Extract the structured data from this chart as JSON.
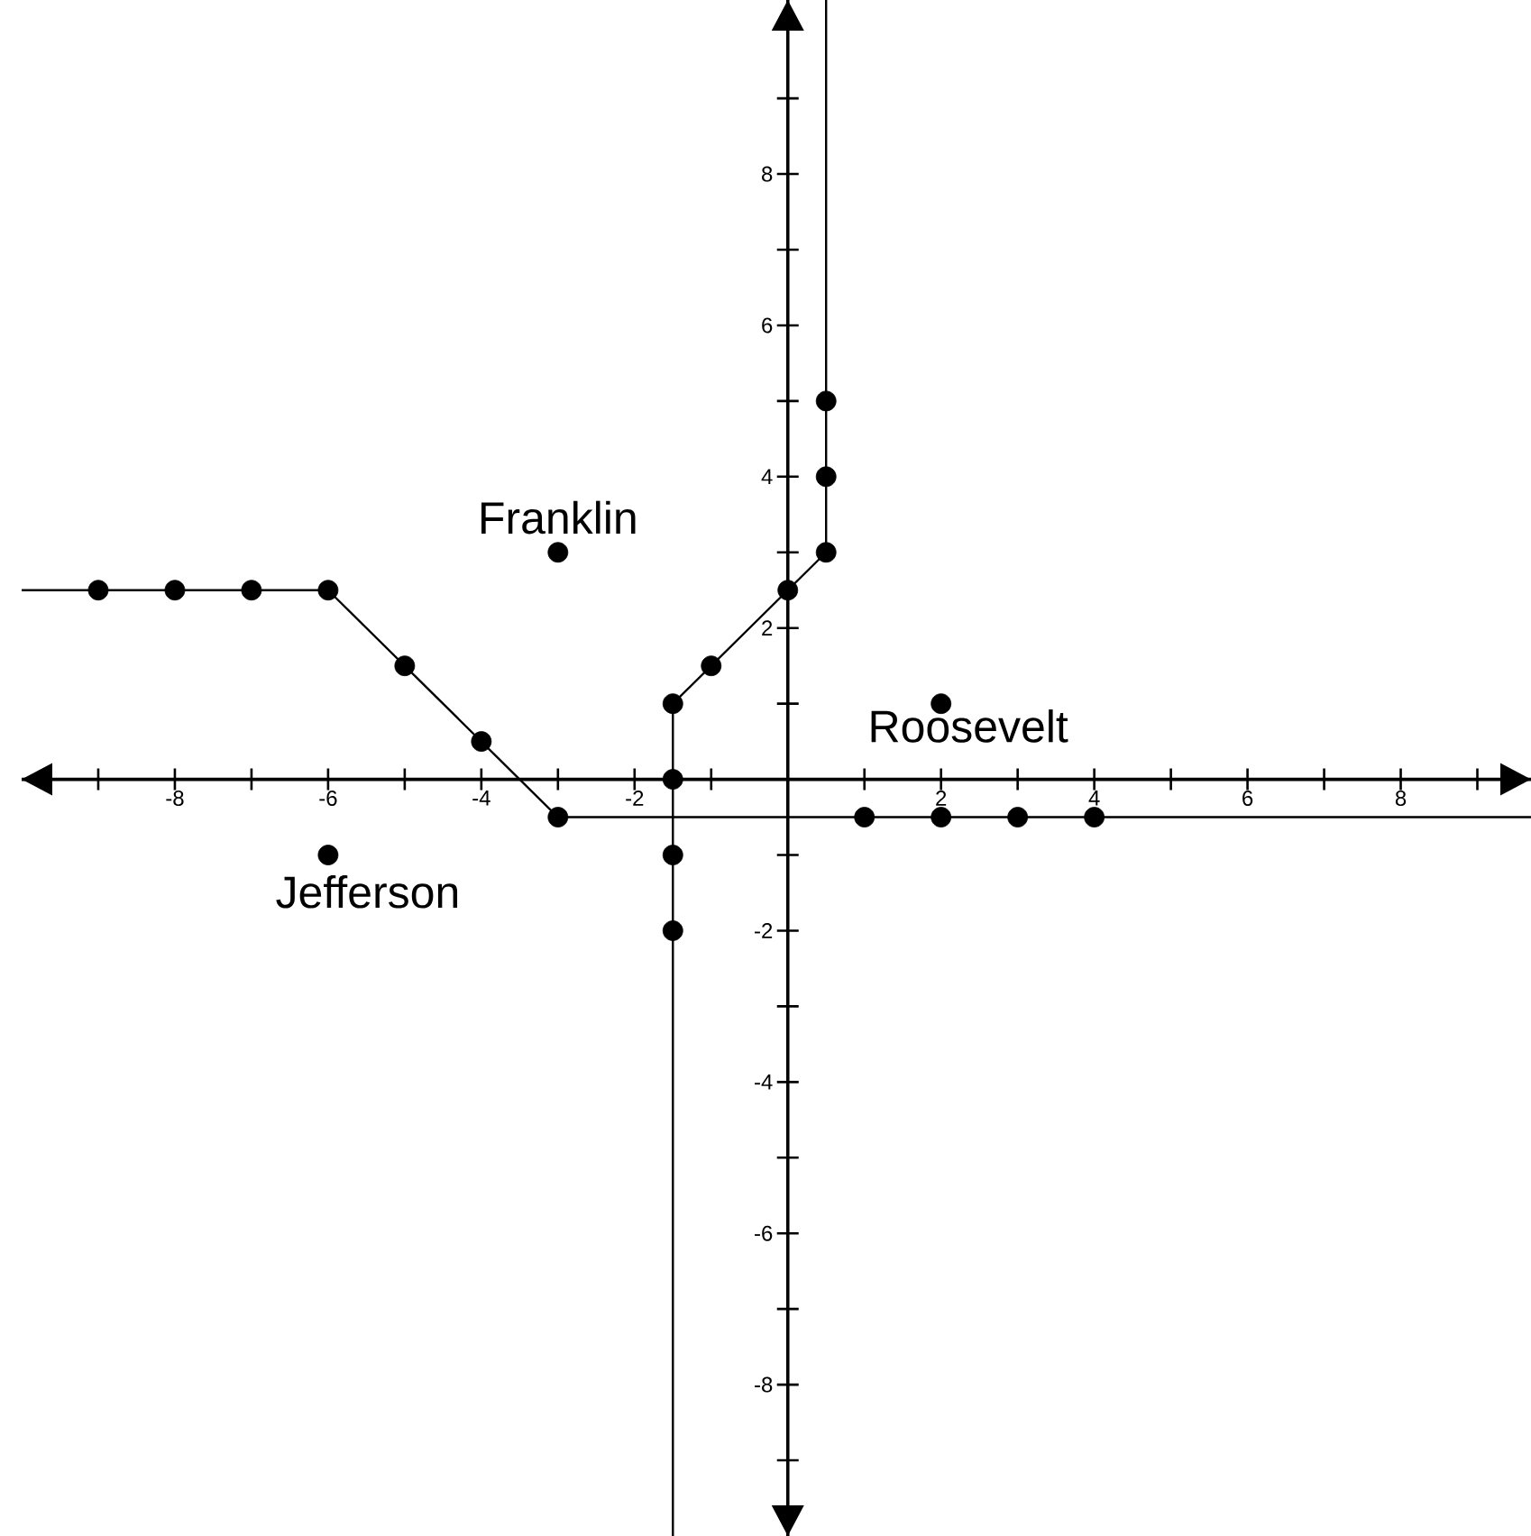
{
  "chart_data": {
    "type": "line",
    "xlim": [
      -10,
      9.7
    ],
    "ylim": [
      -10,
      10.3
    ],
    "xticks": [
      {
        "value": -9,
        "label": null
      },
      -8,
      {
        "value": -7,
        "label": null
      },
      -6,
      {
        "value": -5,
        "label": null
      },
      -4,
      {
        "value": -3,
        "label": null
      },
      -2,
      {
        "value": -1,
        "label": null
      },
      {
        "value": 1,
        "label": null
      },
      2,
      {
        "value": 3,
        "label": null
      },
      4,
      {
        "value": 5,
        "label": null
      },
      6,
      {
        "value": 7,
        "label": null
      },
      8,
      {
        "value": 9,
        "label": null
      }
    ],
    "yticks": [
      {
        "value": -9,
        "label": null
      },
      -8,
      {
        "value": -7,
        "label": null
      },
      -6,
      {
        "value": -5,
        "label": null
      },
      -4,
      {
        "value": -3,
        "label": null
      },
      -2,
      {
        "value": -1,
        "label": null
      },
      {
        "value": 1,
        "label": null
      },
      2,
      {
        "value": 3,
        "label": null
      },
      4,
      {
        "value": 5,
        "label": null
      },
      6,
      {
        "value": 7,
        "label": null
      },
      8,
      {
        "value": 9,
        "label": null
      }
    ],
    "series": [
      {
        "marker": "none",
        "color": "#000000",
        "x": [
          -10,
          -6,
          -3,
          9.7
        ],
        "values": [
          2.5,
          2.5,
          -0.5,
          -0.5
        ]
      },
      {
        "marker": "none",
        "color": "#000000",
        "x": [
          -1.5,
          -1.5,
          0.5,
          0.5
        ],
        "values": [
          -10,
          1,
          3,
          10.3
        ]
      },
      {
        "type": "scatter",
        "marker": "circle",
        "color": "#000000",
        "x": [
          -9,
          -8,
          -7,
          -6,
          -5,
          -4,
          -3,
          1,
          2,
          3,
          4,
          -1.5,
          -1.5,
          -1.5,
          -1.5,
          -1,
          0,
          0.5,
          0.5,
          0.5
        ],
        "values": [
          2.5,
          2.5,
          2.5,
          2.5,
          1.5,
          0.5,
          -0.5,
          -0.5,
          -0.5,
          -0.5,
          -0.5,
          1,
          0,
          -1,
          -2,
          1.5,
          2.5,
          3,
          4,
          5
        ]
      },
      {
        "type": "scatter",
        "marker": "circle",
        "color": "#000000",
        "x": [
          -3,
          2,
          -6
        ],
        "values": [
          3,
          1,
          -1
        ]
      }
    ],
    "annotations": [
      {
        "text": "Franklin",
        "x": -3,
        "y": 3
      },
      {
        "text": "Roosevelt",
        "x": 2,
        "y": 1
      },
      {
        "text": "Jefferson",
        "x": -6,
        "y": -1
      }
    ]
  }
}
